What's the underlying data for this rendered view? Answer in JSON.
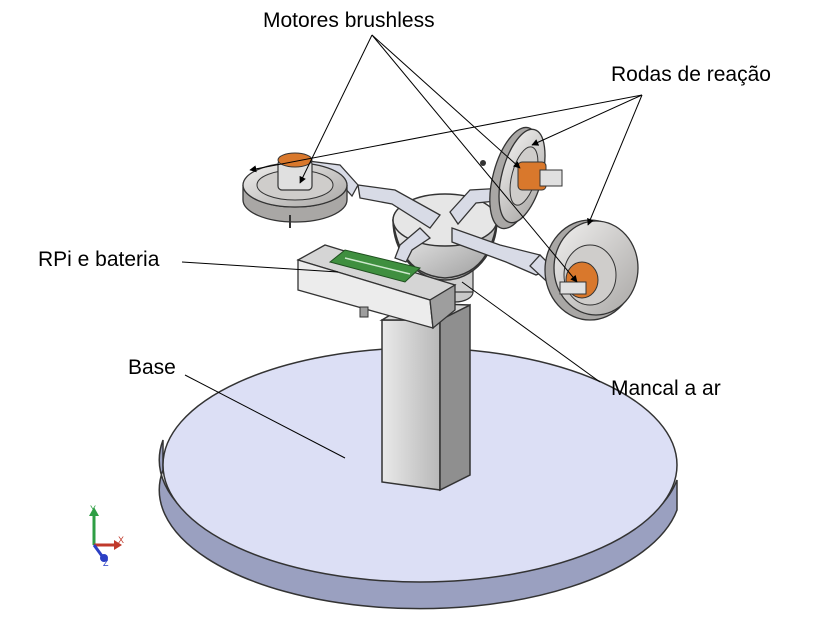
{
  "labels": {
    "motores": "Motores brushless",
    "rodas": "Rodas de reação",
    "rpi": "RPi e bateria",
    "base": "Base",
    "mancal": "Mancal a ar"
  },
  "triad": {
    "x": "X",
    "y": "Y",
    "z": "Z"
  },
  "colors": {
    "base_top": "#dcdff5",
    "wheel": "#d9d6d3",
    "motor": "#d9782c",
    "board": "#3f8f3f",
    "triad_x": "#c0392b",
    "triad_y": "#2e9e44",
    "triad_z": "#2b3fc4"
  }
}
